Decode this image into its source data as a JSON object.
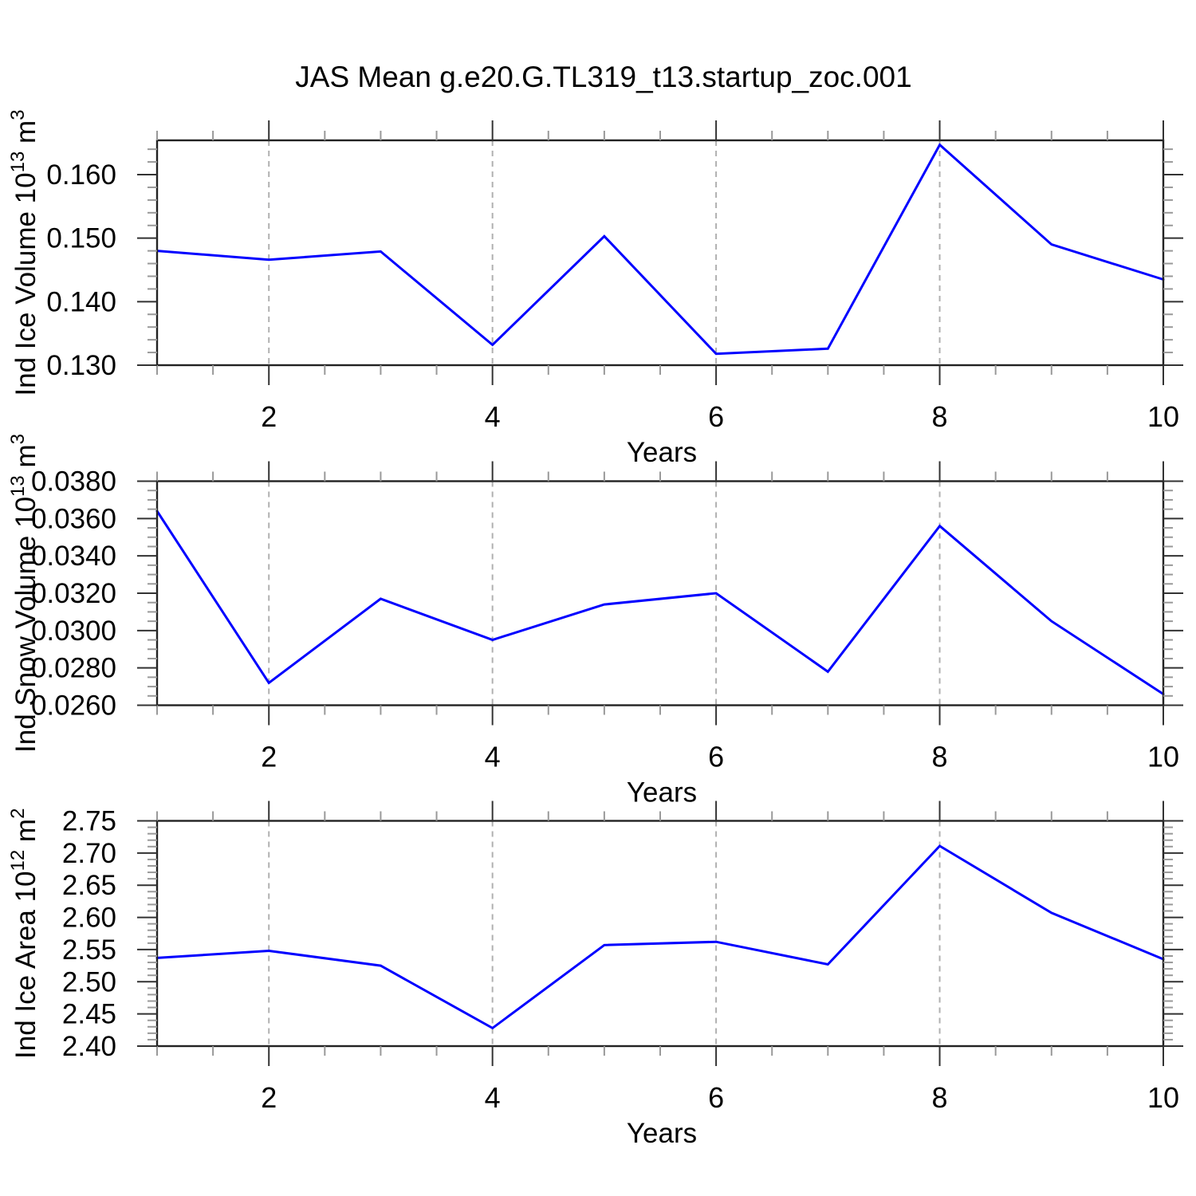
{
  "title": "JAS Mean g.e20.G.TL319_t13.startup_zoc.001",
  "colors": {
    "background": "#ffffff",
    "line": "#0000ff",
    "spine": "#222222",
    "major_tick": "#333333",
    "minor_tick": "#999999",
    "gridline": "#b0b0b0",
    "text": "#000000"
  },
  "chart_data": [
    {
      "type": "line",
      "panel": 1,
      "x": [
        1,
        2,
        3,
        4,
        5,
        6,
        7,
        8,
        9,
        10
      ],
      "values": [
        0.148,
        0.1466,
        0.1479,
        0.1332,
        0.1503,
        0.1318,
        0.1326,
        0.1647,
        0.149,
        0.1435
      ],
      "xlabel": "Years",
      "ylabel": "Ind Ice Volume 10^13 m^3",
      "ylabel_parts": [
        {
          "t": "Ind Ice Volume 10"
        },
        {
          "sup": "13"
        },
        {
          "t": " m"
        },
        {
          "sup": "3"
        }
      ],
      "xlim": [
        1,
        10
      ],
      "ylim": [
        0.13,
        0.1654
      ],
      "x_major_ticks": [
        {
          "v": 2,
          "label": "2"
        },
        {
          "v": 4,
          "label": "4"
        },
        {
          "v": 6,
          "label": "6"
        },
        {
          "v": 8,
          "label": "8"
        },
        {
          "v": 10,
          "label": "10"
        }
      ],
      "x_minor_step": 0.5,
      "y_major_ticks": [
        {
          "v": 0.13,
          "label": "0.130"
        },
        {
          "v": 0.14,
          "label": "0.140"
        },
        {
          "v": 0.15,
          "label": "0.150"
        },
        {
          "v": 0.16,
          "label": "0.160"
        }
      ],
      "y_minor_step": 0.002,
      "grid_x": [
        2,
        4,
        6,
        8
      ],
      "grid_style": "vertical-dashed",
      "legend": "none"
    },
    {
      "type": "line",
      "panel": 2,
      "x": [
        1,
        2,
        3,
        4,
        5,
        6,
        7,
        8,
        9,
        10
      ],
      "values": [
        0.0364,
        0.0272,
        0.0317,
        0.0295,
        0.0314,
        0.032,
        0.0278,
        0.0356,
        0.0305,
        0.0266
      ],
      "xlabel": "Years",
      "ylabel": "Ind Snow Volume 10^13 m^3",
      "ylabel_parts": [
        {
          "t": "Ind Snow Volume 10"
        },
        {
          "sup": "13"
        },
        {
          "t": " m"
        },
        {
          "sup": "3"
        }
      ],
      "xlim": [
        1,
        10
      ],
      "ylim": [
        0.026,
        0.038
      ],
      "x_major_ticks": [
        {
          "v": 2,
          "label": "2"
        },
        {
          "v": 4,
          "label": "4"
        },
        {
          "v": 6,
          "label": "6"
        },
        {
          "v": 8,
          "label": "8"
        },
        {
          "v": 10,
          "label": "10"
        }
      ],
      "x_minor_step": 0.5,
      "y_major_ticks": [
        {
          "v": 0.026,
          "label": "0.0260"
        },
        {
          "v": 0.028,
          "label": "0.0280"
        },
        {
          "v": 0.03,
          "label": "0.0300"
        },
        {
          "v": 0.032,
          "label": "0.0320"
        },
        {
          "v": 0.034,
          "label": "0.0340"
        },
        {
          "v": 0.036,
          "label": "0.0360"
        },
        {
          "v": 0.038,
          "label": "0.0380"
        }
      ],
      "y_minor_step": 0.0005,
      "grid_x": [
        2,
        4,
        6,
        8
      ],
      "grid_style": "vertical-dashed",
      "legend": "none"
    },
    {
      "type": "line",
      "panel": 3,
      "x": [
        1,
        2,
        3,
        4,
        5,
        6,
        7,
        8,
        9,
        10
      ],
      "values": [
        2.537,
        2.548,
        2.525,
        2.428,
        2.557,
        2.562,
        2.527,
        2.711,
        2.607,
        2.535
      ],
      "xlabel": "Years",
      "ylabel": "Ind Ice Area 10^12 m^2",
      "ylabel_parts": [
        {
          "t": "Ind Ice Area 10"
        },
        {
          "sup": "12"
        },
        {
          "t": " m"
        },
        {
          "sup": "2"
        }
      ],
      "xlim": [
        1,
        10
      ],
      "ylim": [
        2.4,
        2.75
      ],
      "x_major_ticks": [
        {
          "v": 2,
          "label": "2"
        },
        {
          "v": 4,
          "label": "4"
        },
        {
          "v": 6,
          "label": "6"
        },
        {
          "v": 8,
          "label": "8"
        },
        {
          "v": 10,
          "label": "10"
        }
      ],
      "x_minor_step": 0.5,
      "y_major_ticks": [
        {
          "v": 2.4,
          "label": "2.40"
        },
        {
          "v": 2.45,
          "label": "2.45"
        },
        {
          "v": 2.5,
          "label": "2.50"
        },
        {
          "v": 2.55,
          "label": "2.55"
        },
        {
          "v": 2.6,
          "label": "2.60"
        },
        {
          "v": 2.65,
          "label": "2.65"
        },
        {
          "v": 2.7,
          "label": "2.70"
        },
        {
          "v": 2.75,
          "label": "2.75"
        }
      ],
      "y_minor_step": 0.01,
      "grid_x": [
        2,
        4,
        6,
        8
      ],
      "grid_style": "vertical-dashed",
      "legend": "none"
    }
  ]
}
